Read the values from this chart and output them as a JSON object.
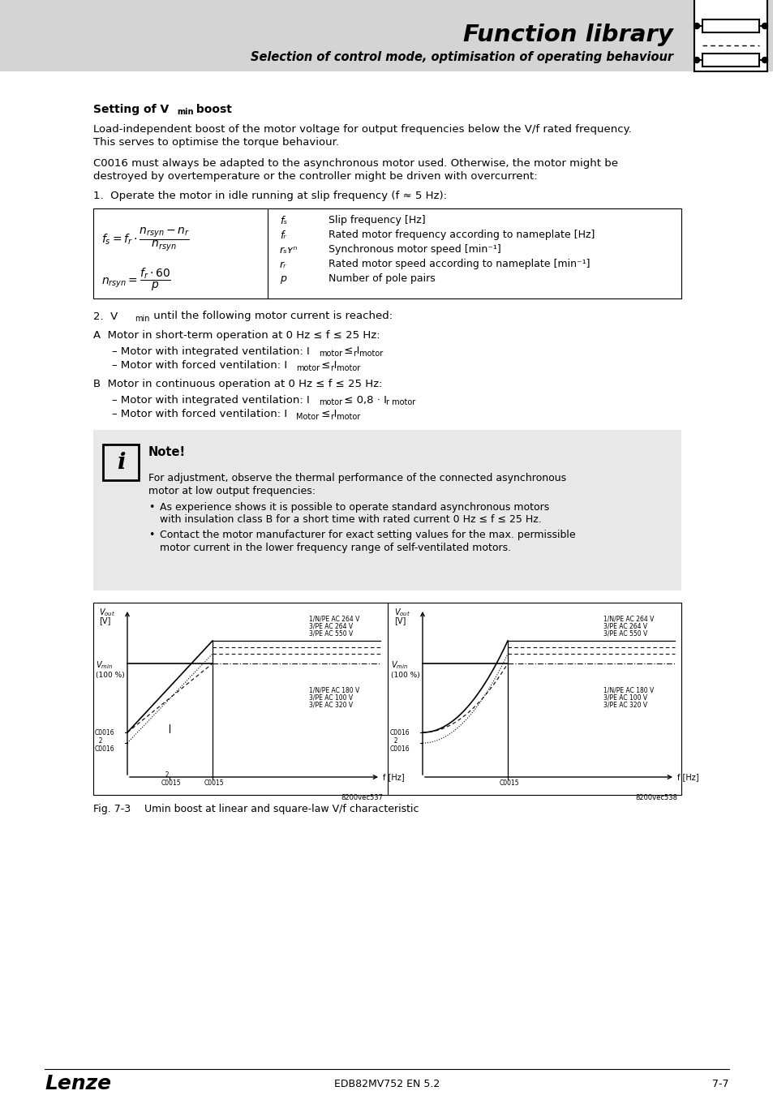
{
  "title": "Function library",
  "subtitle": "Selection of control mode, optimisation of operating behaviour",
  "header_bg": "#d4d4d4",
  "page_bg": "#ffffff",
  "note_bg": "#e8e8e8",
  "footer_left": "Lenze",
  "footer_center": "EDB82MV752 EN 5.2",
  "footer_right": "7-7",
  "fig_caption": "Fig. 7-3      Umin boost at linear and square-law V/f characteristic"
}
